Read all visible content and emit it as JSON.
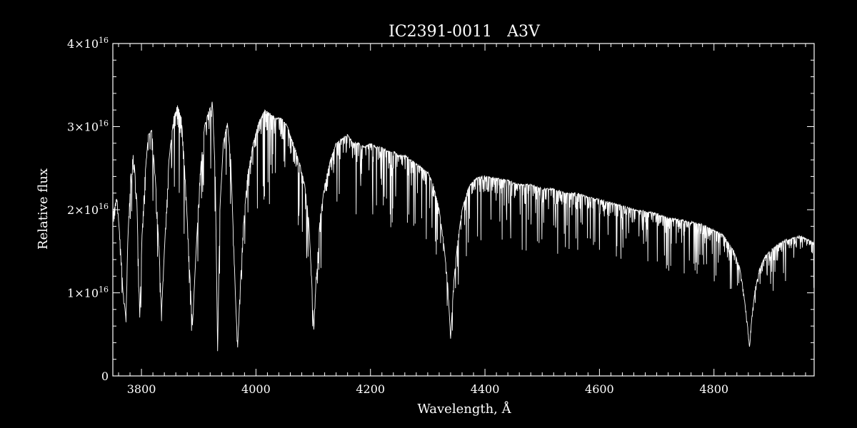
{
  "chart_data": {
    "type": "line",
    "title": "IC2391-0011   A3V",
    "xlabel": "Wavelength, Å",
    "ylabel": "Relative flux",
    "xlim": [
      3750,
      4975
    ],
    "ylim": [
      0,
      4e+16
    ],
    "x_ticks": [
      3800,
      4000,
      4200,
      4400,
      4600,
      4800
    ],
    "x_tick_labels": [
      "3800",
      "4000",
      "4200",
      "4400",
      "4600",
      "4800"
    ],
    "y_ticks": [
      {
        "value": 0,
        "mantissa": "0",
        "exp": ""
      },
      {
        "value": 1e+16,
        "mantissa": "1×10",
        "exp": "16"
      },
      {
        "value": 2e+16,
        "mantissa": "2×10",
        "exp": "16"
      },
      {
        "value": 3e+16,
        "mantissa": "3×10",
        "exp": "16"
      },
      {
        "value": 4e+16,
        "mantissa": "4×10",
        "exp": "16"
      }
    ],
    "grid": false,
    "series": [
      {
        "color": "#ffffff",
        "points": [
          [
            3750,
            1.95e+16
          ],
          [
            3757,
            2.15e+16
          ],
          [
            3763,
            1.6e+16
          ],
          [
            3768,
            1e+16
          ],
          [
            3773,
            7000000000000000.0
          ],
          [
            3776,
            1.6e+16
          ],
          [
            3781,
            2.4e+16
          ],
          [
            3786,
            2.7e+16
          ],
          [
            3792,
            2.1e+16
          ],
          [
            3797,
            7000000000000000.0
          ],
          [
            3801,
            1.7e+16
          ],
          [
            3806,
            2.4e+16
          ],
          [
            3812,
            2.9e+16
          ],
          [
            3818,
            2.95e+16
          ],
          [
            3825,
            2.3e+16
          ],
          [
            3831,
            1.5e+16
          ],
          [
            3835,
            7500000000000000.0
          ],
          [
            3840,
            1.5e+16
          ],
          [
            3848,
            2.6e+16
          ],
          [
            3856,
            3.1e+16
          ],
          [
            3863,
            3.25e+16
          ],
          [
            3870,
            3.1e+16
          ],
          [
            3877,
            2.3e+16
          ],
          [
            3884,
            1.3e+16
          ],
          [
            3889,
            6000000000000000.0
          ],
          [
            3894,
            1.3e+16
          ],
          [
            3902,
            2.4e+16
          ],
          [
            3910,
            3e+16
          ],
          [
            3918,
            3.2e+16
          ],
          [
            3924,
            3.3e+16
          ],
          [
            3929,
            2.4e+16
          ],
          [
            3933,
            3000000000000000.0
          ],
          [
            3937,
            2e+16
          ],
          [
            3943,
            2.8e+16
          ],
          [
            3950,
            3.05e+16
          ],
          [
            3956,
            2.6e+16
          ],
          [
            3961,
            1.6e+16
          ],
          [
            3965,
            8000000000000000.0
          ],
          [
            3968,
            3500000000000000.0
          ],
          [
            3972,
            1e+16
          ],
          [
            3978,
            1.8e+16
          ],
          [
            3985,
            2.4e+16
          ],
          [
            3995,
            2.8e+16
          ],
          [
            4005,
            3.05e+16
          ],
          [
            4015,
            3.2e+16
          ],
          [
            4025,
            3.15e+16
          ],
          [
            4035,
            3.1e+16
          ],
          [
            4045,
            3.1e+16
          ],
          [
            4055,
            3e+16
          ],
          [
            4065,
            2.8e+16
          ],
          [
            4075,
            2.6e+16
          ],
          [
            4085,
            2.3e+16
          ],
          [
            4092,
            1.9e+16
          ],
          [
            4097,
            1.2e+16
          ],
          [
            4101,
            5500000000000000.0
          ],
          [
            4105,
            1.2e+16
          ],
          [
            4112,
            1.9e+16
          ],
          [
            4120,
            2.3e+16
          ],
          [
            4130,
            2.6e+16
          ],
          [
            4140,
            2.8e+16
          ],
          [
            4150,
            2.85e+16
          ],
          [
            4160,
            2.9e+16
          ],
          [
            4170,
            2.8e+16
          ],
          [
            4180,
            2.8e+16
          ],
          [
            4190,
            2.75e+16
          ],
          [
            4200,
            2.8e+16
          ],
          [
            4210,
            2.75e+16
          ],
          [
            4220,
            2.75e+16
          ],
          [
            4230,
            2.7e+16
          ],
          [
            4240,
            2.7e+16
          ],
          [
            4250,
            2.65e+16
          ],
          [
            4260,
            2.65e+16
          ],
          [
            4270,
            2.6e+16
          ],
          [
            4280,
            2.55e+16
          ],
          [
            4290,
            2.5e+16
          ],
          [
            4300,
            2.45e+16
          ],
          [
            4310,
            2.3e+16
          ],
          [
            4320,
            2e+16
          ],
          [
            4328,
            1.6e+16
          ],
          [
            4335,
            1.1e+16
          ],
          [
            4340,
            4500000000000000.0
          ],
          [
            4345,
            1.1e+16
          ],
          [
            4352,
            1.6e+16
          ],
          [
            4360,
            2e+16
          ],
          [
            4370,
            2.25e+16
          ],
          [
            4380,
            2.35e+16
          ],
          [
            4390,
            2.4e+16
          ],
          [
            4400,
            2.4e+16
          ],
          [
            4420,
            2.38e+16
          ],
          [
            4440,
            2.35e+16
          ],
          [
            4460,
            2.3e+16
          ],
          [
            4480,
            2.3e+16
          ],
          [
            4500,
            2.25e+16
          ],
          [
            4520,
            2.25e+16
          ],
          [
            4540,
            2.2e+16
          ],
          [
            4560,
            2.2e+16
          ],
          [
            4580,
            2.15e+16
          ],
          [
            4600,
            2.12e+16
          ],
          [
            4620,
            2.08e+16
          ],
          [
            4640,
            2.05e+16
          ],
          [
            4660,
            2e+16
          ],
          [
            4680,
            1.98e+16
          ],
          [
            4700,
            1.95e+16
          ],
          [
            4720,
            1.9e+16
          ],
          [
            4740,
            1.88e+16
          ],
          [
            4760,
            1.85e+16
          ],
          [
            4780,
            1.82e+16
          ],
          [
            4800,
            1.75e+16
          ],
          [
            4815,
            1.7e+16
          ],
          [
            4825,
            1.6e+16
          ],
          [
            4835,
            1.5e+16
          ],
          [
            4845,
            1.3e+16
          ],
          [
            4852,
            1e+16
          ],
          [
            4858,
            6500000000000000.0
          ],
          [
            4862,
            3500000000000000.0
          ],
          [
            4866,
            7000000000000000.0
          ],
          [
            4872,
            1.05e+16
          ],
          [
            4880,
            1.3e+16
          ],
          [
            4890,
            1.45e+16
          ],
          [
            4905,
            1.55e+16
          ],
          [
            4920,
            1.62e+16
          ],
          [
            4935,
            1.65e+16
          ],
          [
            4950,
            1.68e+16
          ],
          [
            4960,
            1.65e+16
          ],
          [
            4975,
            1.6e+16
          ]
        ]
      }
    ]
  }
}
